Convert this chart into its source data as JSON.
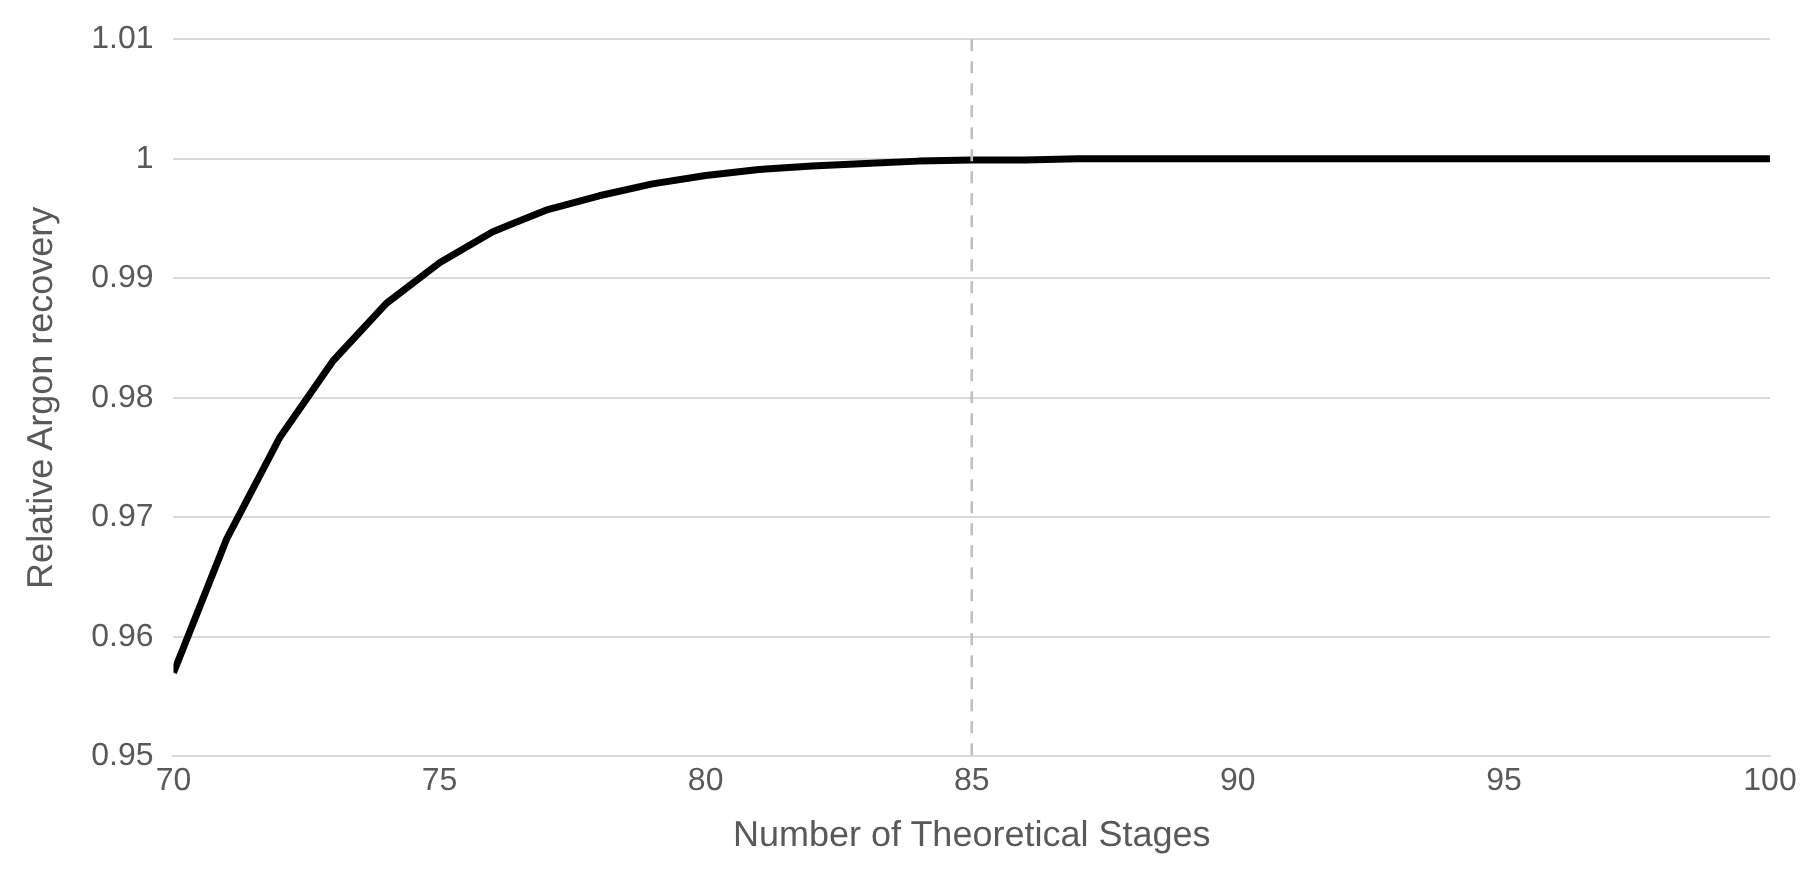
{
  "chart_data": {
    "type": "line",
    "xlabel": "Number of Theoretical Stages",
    "ylabel": "Relative Argon recovery",
    "x": [
      70,
      71,
      72,
      73,
      74,
      75,
      76,
      77,
      78,
      79,
      80,
      81,
      82,
      83,
      84,
      85,
      86,
      87,
      88,
      89,
      90,
      92,
      94,
      96,
      98,
      100
    ],
    "series": [
      {
        "color": "#000000",
        "values": [
          0.957,
          0.9682,
          0.9767,
          0.9831,
          0.9879,
          0.9913,
          0.9939,
          0.9957,
          0.9969,
          0.9979,
          0.9986,
          0.9991,
          0.9994,
          0.9996,
          0.9998,
          0.9999,
          0.9999,
          1,
          1,
          1,
          1,
          1,
          1,
          1,
          1,
          1
        ]
      }
    ],
    "xlim": [
      70,
      100
    ],
    "xticks": [
      70,
      75,
      80,
      85,
      90,
      95,
      100
    ],
    "ylim": [
      0.95,
      1.01
    ],
    "yticks": [
      0.95,
      0.96,
      0.97,
      0.98,
      0.99,
      1,
      1.01
    ],
    "grid": "y",
    "legend": false,
    "marker": "none",
    "line_style": "solid",
    "ref_lines": [
      {
        "axis": "x",
        "value": 85,
        "color": "#bfbfbf",
        "line_style": "dashed"
      }
    ]
  }
}
